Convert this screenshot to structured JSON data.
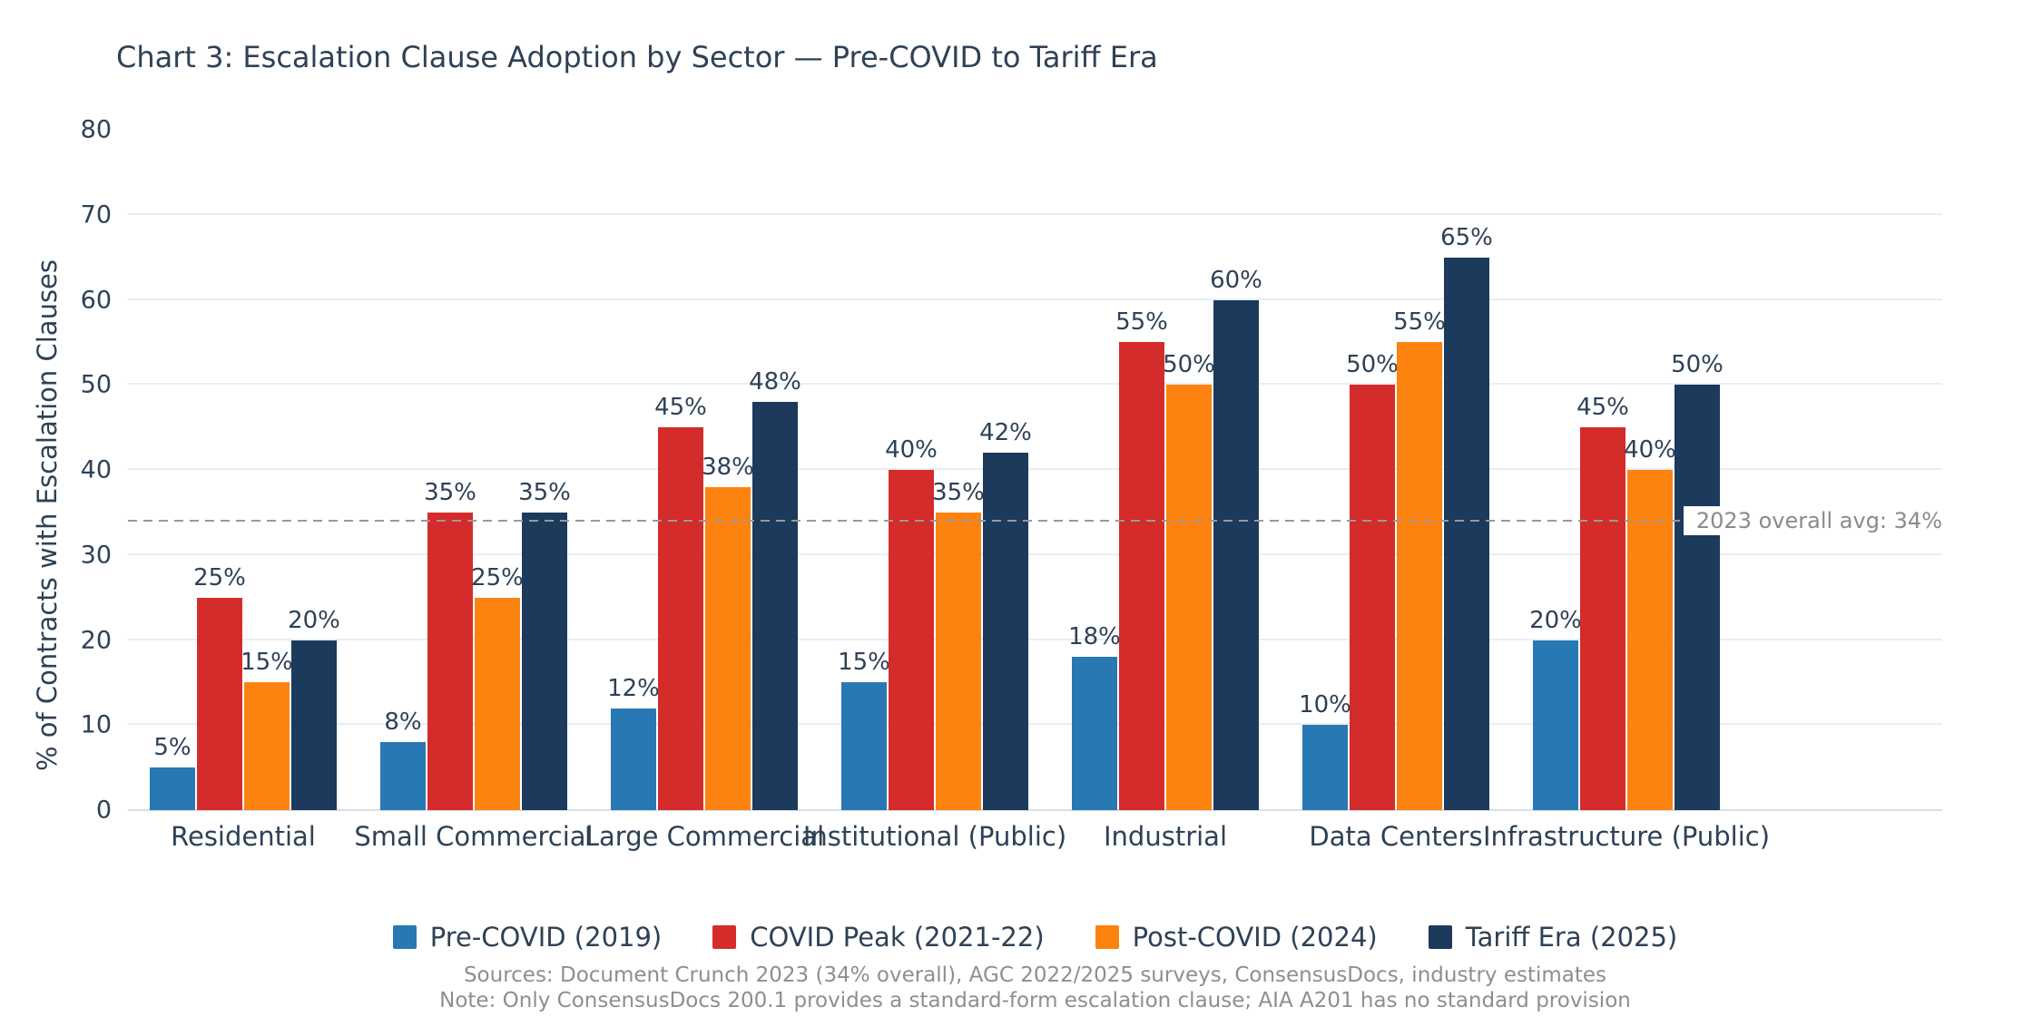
{
  "title": "Chart 3: Escalation Clause Adoption by Sector — Pre-COVID to Tariff Era",
  "chart_data": {
    "type": "bar",
    "title": "Chart 3: Escalation Clause Adoption by Sector — Pre-COVID to Tariff Era",
    "xlabel": "",
    "ylabel": "% of Contracts with Escalation Clauses",
    "ylim": [
      0,
      80
    ],
    "yticks": [
      0,
      10,
      20,
      30,
      40,
      50,
      60,
      70,
      80
    ],
    "grid": true,
    "legend_position": "bottom",
    "categories": [
      "Residential",
      "Small Commercial",
      "Large Commercial",
      "Institutional (Public)",
      "Industrial",
      "Data Centers",
      "Infrastructure (Public)"
    ],
    "series": [
      {
        "name": "Pre-COVID (2019)",
        "color": "#2878B4",
        "values": [
          5,
          8,
          12,
          15,
          18,
          10,
          20
        ]
      },
      {
        "name": "COVID Peak (2021-22)",
        "color": "#D42B2B",
        "values": [
          25,
          35,
          45,
          40,
          55,
          50,
          45
        ]
      },
      {
        "name": "Post-COVID (2024)",
        "color": "#FC830F",
        "values": [
          15,
          25,
          38,
          35,
          50,
          55,
          40
        ]
      },
      {
        "name": "Tariff Era (2025)",
        "color": "#1B3A5C",
        "values": [
          20,
          35,
          48,
          42,
          60,
          65,
          50
        ]
      }
    ],
    "value_label_format": "{v}%",
    "reference_line": {
      "value": 34,
      "label": "2023 overall avg: 34%",
      "color": "#999999",
      "style": "dashed"
    }
  },
  "footer": {
    "sources": "Sources: Document Crunch 2023 (34% overall), AGC 2022/2025 surveys, ConsensusDocs, industry estimates",
    "note": "Note: Only ConsensusDocs 200.1 provides a standard-form escalation clause; AIA A201 has no standard provision"
  },
  "theme": {
    "text_color": "#2E4156",
    "grid_color": "#E9EEF4",
    "axis_color": "#D9DEE6",
    "annotation_color": "#8A8A8A",
    "footer_color": "#8E8E8E",
    "background": "#FFFFFF"
  }
}
